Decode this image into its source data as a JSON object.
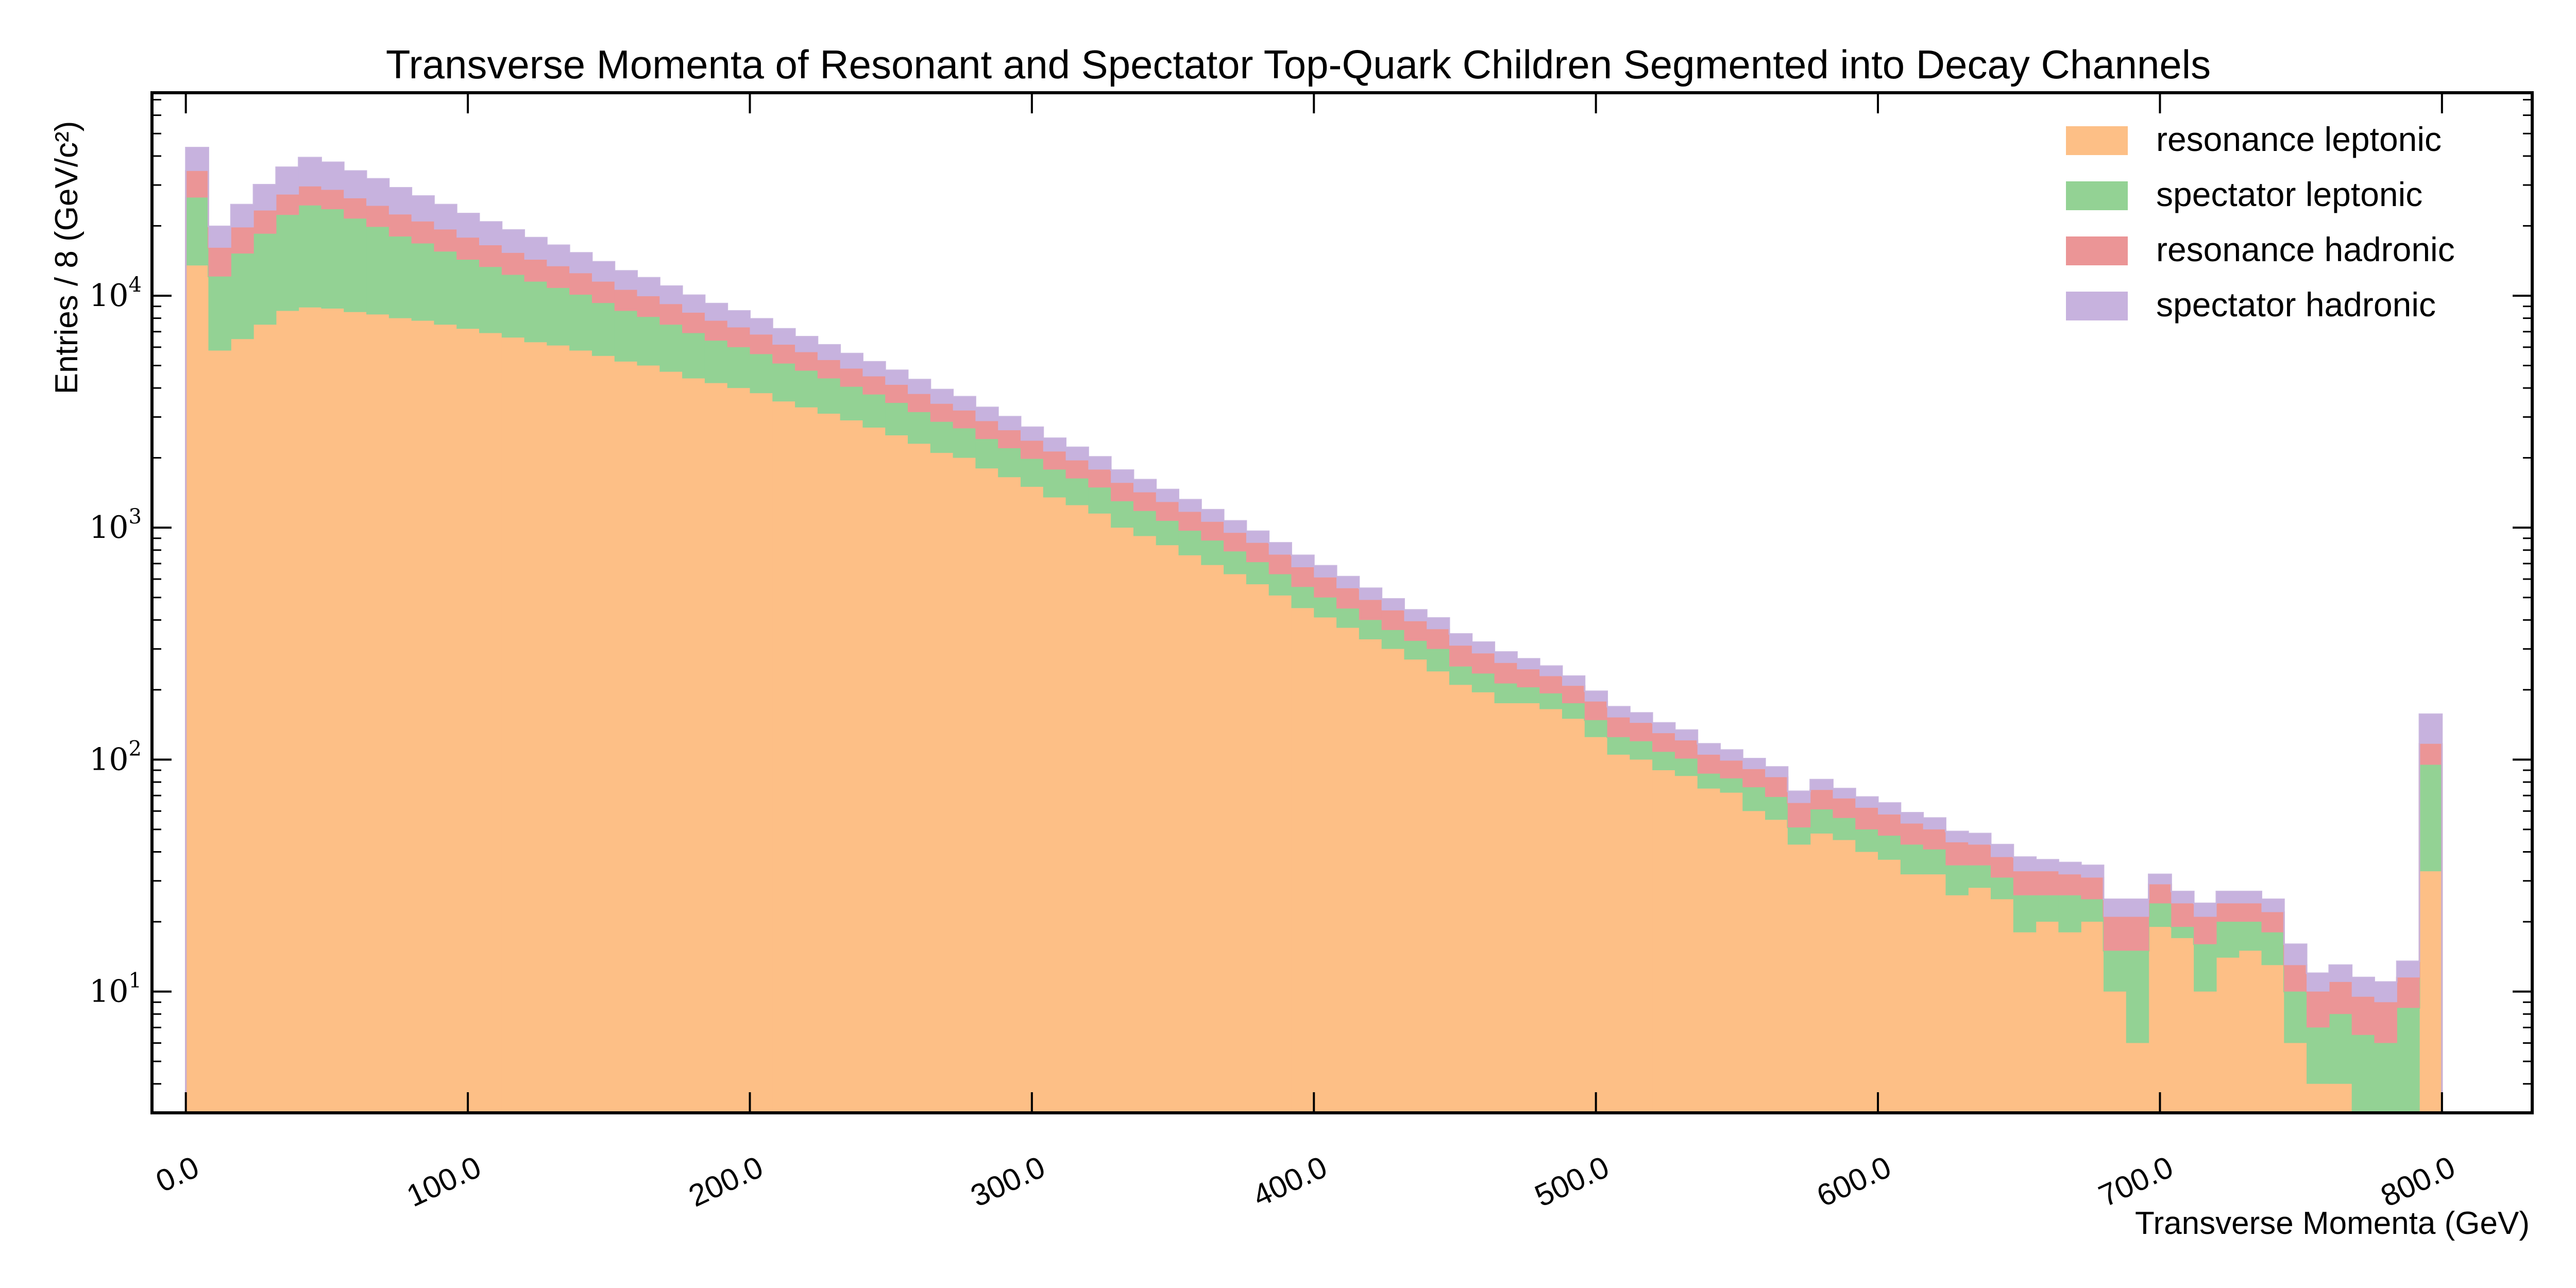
{
  "chart_data": {
    "type": "bar",
    "stacked": true,
    "histogram": true,
    "title": "Transverse Momenta of Resonant and Spectator Top-Quark Children Segmented into Decay Channels",
    "xlabel": "Transverse Momenta (GeV)",
    "ylabel": "Entries / 8 (GeV/c²)",
    "y_scale": "log",
    "xlim": [
      -12,
      832
    ],
    "ylim": [
      3,
      75000
    ],
    "grid": false,
    "legend_position": "top-right",
    "x_ticks": [
      0,
      100,
      200,
      300,
      400,
      500,
      600,
      700,
      800
    ],
    "x_tick_labels": [
      "0.0",
      "100.0",
      "200.0",
      "300.0",
      "400.0",
      "500.0",
      "600.0",
      "700.0",
      "800.0"
    ],
    "y_ticks": [
      10,
      100,
      1000,
      10000
    ],
    "y_tick_labels": [
      {
        "base": "10",
        "exp": "1"
      },
      {
        "base": "10",
        "exp": "2"
      },
      {
        "base": "10",
        "exp": "3"
      },
      {
        "base": "10",
        "exp": "4"
      }
    ],
    "bin_edges_range": [
      0,
      800
    ],
    "bin_width": 8,
    "series": [
      {
        "name": "resonance leptonic",
        "color": "#fdbf86",
        "values": [
          13500,
          5800,
          6500,
          7500,
          8600,
          8900,
          8800,
          8500,
          8300,
          8000,
          7800,
          7500,
          7200,
          6900,
          6600,
          6300,
          6100,
          5800,
          5500,
          5200,
          5000,
          4700,
          4400,
          4200,
          4000,
          3800,
          3500,
          3300,
          3100,
          2900,
          2700,
          2500,
          2300,
          2100,
          2000,
          1800,
          1650,
          1500,
          1350,
          1250,
          1150,
          1000,
          920,
          840,
          760,
          690,
          630,
          570,
          510,
          450,
          410,
          370,
          330,
          300,
          270,
          240,
          210,
          195,
          175,
          175,
          165,
          150,
          125,
          105,
          100,
          90,
          85,
          75,
          72,
          60,
          55,
          43,
          48,
          45,
          40,
          37,
          32,
          32,
          26,
          28,
          25,
          18,
          20,
          18,
          20,
          10,
          6,
          19,
          17,
          10,
          14,
          15,
          13,
          6,
          4,
          4,
          2.5,
          3,
          2.5,
          33
        ]
      },
      {
        "name": "spectator leptonic",
        "color": "#93d294",
        "values": [
          13000,
          6300,
          8700,
          11000,
          13700,
          15600,
          14800,
          13000,
          11500,
          10000,
          9000,
          8000,
          7100,
          6400,
          5700,
          5200,
          4700,
          4300,
          3800,
          3400,
          3100,
          2800,
          2500,
          2200,
          2000,
          1800,
          1600,
          1450,
          1300,
          1150,
          1050,
          950,
          850,
          760,
          680,
          610,
          550,
          480,
          430,
          380,
          340,
          300,
          260,
          230,
          210,
          190,
          160,
          140,
          120,
          105,
          90,
          78,
          70,
          62,
          55,
          60,
          42,
          40,
          38,
          30,
          28,
          25,
          23,
          20,
          20,
          18,
          16,
          12,
          11,
          16,
          14,
          8,
          13,
          11,
          10,
          10,
          11,
          9,
          9,
          7,
          6,
          8,
          6,
          8,
          5,
          5,
          9,
          5,
          2,
          6,
          6,
          5,
          5,
          4,
          3,
          4,
          4,
          3,
          6,
          62
        ]
      },
      {
        "name": "resonance hadronic",
        "color": "#eb9596",
        "values": [
          8000,
          4000,
          4500,
          4800,
          5000,
          5100,
          5000,
          4800,
          4600,
          4400,
          4100,
          3800,
          3500,
          3200,
          3000,
          2800,
          2600,
          2400,
          2200,
          2000,
          1850,
          1700,
          1550,
          1400,
          1300,
          1200,
          1050,
          960,
          880,
          800,
          740,
          680,
          620,
          560,
          520,
          470,
          430,
          390,
          350,
          320,
          290,
          260,
          240,
          220,
          200,
          180,
          160,
          150,
          135,
          120,
          110,
          100,
          88,
          78,
          70,
          65,
          58,
          52,
          48,
          40,
          36,
          33,
          30,
          27,
          24,
          22,
          20,
          18,
          16,
          15,
          15,
          14,
          13,
          12,
          12,
          11,
          10,
          9,
          9,
          8,
          7,
          7,
          7,
          6,
          6,
          6,
          6,
          5,
          5,
          5,
          4,
          4,
          4,
          3,
          3,
          3,
          3,
          3,
          3,
          22
        ]
      },
      {
        "name": "spectator hadronic",
        "color": "#c7b2de",
        "values": [
          9000,
          3800,
          5000,
          6800,
          8500,
          9800,
          9000,
          8200,
          7500,
          6800,
          6000,
          5400,
          4800,
          4300,
          3900,
          3500,
          3100,
          2800,
          2500,
          2200,
          2000,
          1800,
          1600,
          1450,
          1300,
          1150,
          1050,
          950,
          860,
          780,
          700,
          640,
          580,
          520,
          470,
          420,
          380,
          340,
          300,
          270,
          240,
          210,
          190,
          170,
          150,
          135,
          120,
          105,
          95,
          85,
          75,
          67,
          60,
          53,
          47,
          43,
          38,
          34,
          30,
          27,
          24,
          21,
          19,
          17,
          15,
          14,
          13,
          12,
          11,
          10,
          9,
          8,
          8,
          7,
          7,
          7,
          6,
          6,
          5,
          5,
          5,
          5,
          4,
          4,
          4,
          4,
          4,
          3,
          3,
          3,
          3,
          3,
          3,
          3,
          2,
          2,
          2,
          2,
          2,
          40
        ]
      }
    ]
  }
}
